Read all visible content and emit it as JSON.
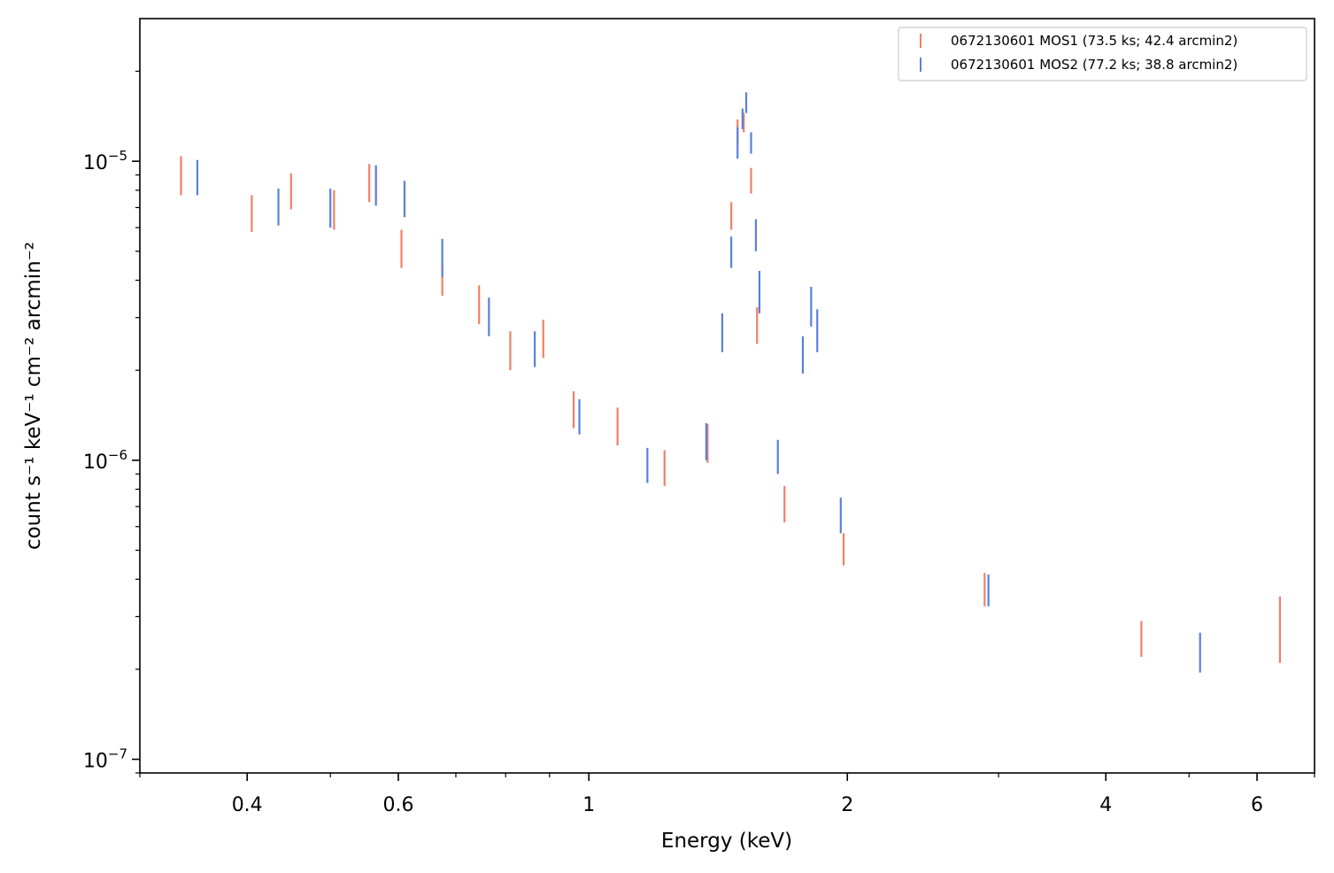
{
  "chart_data": {
    "type": "scatter",
    "xlabel": "Energy (keV)",
    "ylabel": "count s⁻¹ keV⁻¹ cm⁻² arcmin⁻²",
    "xscale": "log",
    "yscale": "log",
    "xlim": [
      0.3,
      7.0
    ],
    "ylim": [
      9e-08,
      3e-05
    ],
    "x_ticks": [
      {
        "value": 0.4,
        "label": "0.4"
      },
      {
        "value": 0.6,
        "label": "0.6"
      },
      {
        "value": 1,
        "label": "1"
      },
      {
        "value": 2,
        "label": "2"
      },
      {
        "value": 4,
        "label": "4"
      },
      {
        "value": 6,
        "label": "6"
      }
    ],
    "y_ticks": [
      {
        "value": 1e-07,
        "base": "10",
        "exp": "−7"
      },
      {
        "value": 1e-06,
        "base": "10",
        "exp": "−6"
      },
      {
        "value": 1e-05,
        "base": "10",
        "exp": "−5"
      }
    ],
    "grid": false,
    "legend_position": "top-right",
    "series": [
      {
        "name": "0672130601 MOS1 (73.5 ks; 42.4 arcmin2)",
        "color": "#f08068",
        "points": [
          {
            "x": 0.335,
            "lo": 7.7e-06,
            "hi": 1.04e-05
          },
          {
            "x": 0.405,
            "lo": 5.8e-06,
            "hi": 7.7e-06
          },
          {
            "x": 0.45,
            "lo": 6.9e-06,
            "hi": 9.1e-06
          },
          {
            "x": 0.505,
            "lo": 5.9e-06,
            "hi": 8e-06
          },
          {
            "x": 0.555,
            "lo": 7.3e-06,
            "hi": 9.8e-06
          },
          {
            "x": 0.605,
            "lo": 4.4e-06,
            "hi": 5.9e-06
          },
          {
            "x": 0.675,
            "lo": 3.55e-06,
            "hi": 4.6e-06
          },
          {
            "x": 0.745,
            "lo": 2.85e-06,
            "hi": 3.85e-06
          },
          {
            "x": 0.81,
            "lo": 2e-06,
            "hi": 2.7e-06
          },
          {
            "x": 0.885,
            "lo": 2.2e-06,
            "hi": 2.95e-06
          },
          {
            "x": 0.96,
            "lo": 1.28e-06,
            "hi": 1.7e-06
          },
          {
            "x": 1.08,
            "lo": 1.12e-06,
            "hi": 1.5e-06
          },
          {
            "x": 1.225,
            "lo": 8.2e-07,
            "hi": 1.08e-06
          },
          {
            "x": 1.375,
            "lo": 9.8e-07,
            "hi": 1.32e-06
          },
          {
            "x": 1.465,
            "lo": 5.9e-06,
            "hi": 7.3e-06
          },
          {
            "x": 1.49,
            "lo": 1.13e-05,
            "hi": 1.38e-05
          },
          {
            "x": 1.515,
            "lo": 1.25e-05,
            "hi": 1.45e-05
          },
          {
            "x": 1.545,
            "lo": 7.8e-06,
            "hi": 9.5e-06
          },
          {
            "x": 1.57,
            "lo": 2.45e-06,
            "hi": 3.25e-06
          },
          {
            "x": 1.69,
            "lo": 6.2e-07,
            "hi": 8.2e-07
          },
          {
            "x": 1.98,
            "lo": 4.45e-07,
            "hi": 5.7e-07
          },
          {
            "x": 2.89,
            "lo": 3.25e-07,
            "hi": 4.2e-07
          },
          {
            "x": 4.4,
            "lo": 2.2e-07,
            "hi": 2.9e-07
          },
          {
            "x": 6.38,
            "lo": 2.1e-07,
            "hi": 3.5e-07
          }
        ]
      },
      {
        "name": "0672130601 MOS2 (77.2 ks; 38.8 arcmin2)",
        "color": "#5b7fdc",
        "points": [
          {
            "x": 0.35,
            "lo": 7.7e-06,
            "hi": 1.01e-05
          },
          {
            "x": 0.435,
            "lo": 6.1e-06,
            "hi": 8.1e-06
          },
          {
            "x": 0.5,
            "lo": 6e-06,
            "hi": 8.1e-06
          },
          {
            "x": 0.565,
            "lo": 7.1e-06,
            "hi": 9.7e-06
          },
          {
            "x": 0.61,
            "lo": 6.5e-06,
            "hi": 8.6e-06
          },
          {
            "x": 0.675,
            "lo": 4.1e-06,
            "hi": 5.5e-06
          },
          {
            "x": 0.765,
            "lo": 2.6e-06,
            "hi": 3.5e-06
          },
          {
            "x": 0.865,
            "lo": 2.05e-06,
            "hi": 2.7e-06
          },
          {
            "x": 0.975,
            "lo": 1.22e-06,
            "hi": 1.6e-06
          },
          {
            "x": 1.17,
            "lo": 8.4e-07,
            "hi": 1.1e-06
          },
          {
            "x": 1.37,
            "lo": 1e-06,
            "hi": 1.33e-06
          },
          {
            "x": 1.43,
            "lo": 2.3e-06,
            "hi": 3.1e-06
          },
          {
            "x": 1.465,
            "lo": 4.4e-06,
            "hi": 5.6e-06
          },
          {
            "x": 1.49,
            "lo": 1.02e-05,
            "hi": 1.3e-05
          },
          {
            "x": 1.51,
            "lo": 1.28e-05,
            "hi": 1.5e-05
          },
          {
            "x": 1.525,
            "lo": 1.45e-05,
            "hi": 1.7e-05
          },
          {
            "x": 1.545,
            "lo": 1.06e-05,
            "hi": 1.25e-05
          },
          {
            "x": 1.565,
            "lo": 5e-06,
            "hi": 6.4e-06
          },
          {
            "x": 1.58,
            "lo": 3.1e-06,
            "hi": 4.3e-06
          },
          {
            "x": 1.66,
            "lo": 9e-07,
            "hi": 1.17e-06
          },
          {
            "x": 1.775,
            "lo": 1.95e-06,
            "hi": 2.6e-06
          },
          {
            "x": 1.815,
            "lo": 2.8e-06,
            "hi": 3.8e-06
          },
          {
            "x": 1.845,
            "lo": 2.3e-06,
            "hi": 3.2e-06
          },
          {
            "x": 1.965,
            "lo": 5.7e-07,
            "hi": 7.5e-07
          },
          {
            "x": 2.92,
            "lo": 3.25e-07,
            "hi": 4.15e-07
          },
          {
            "x": 5.15,
            "lo": 1.95e-07,
            "hi": 2.65e-07
          }
        ]
      }
    ]
  }
}
